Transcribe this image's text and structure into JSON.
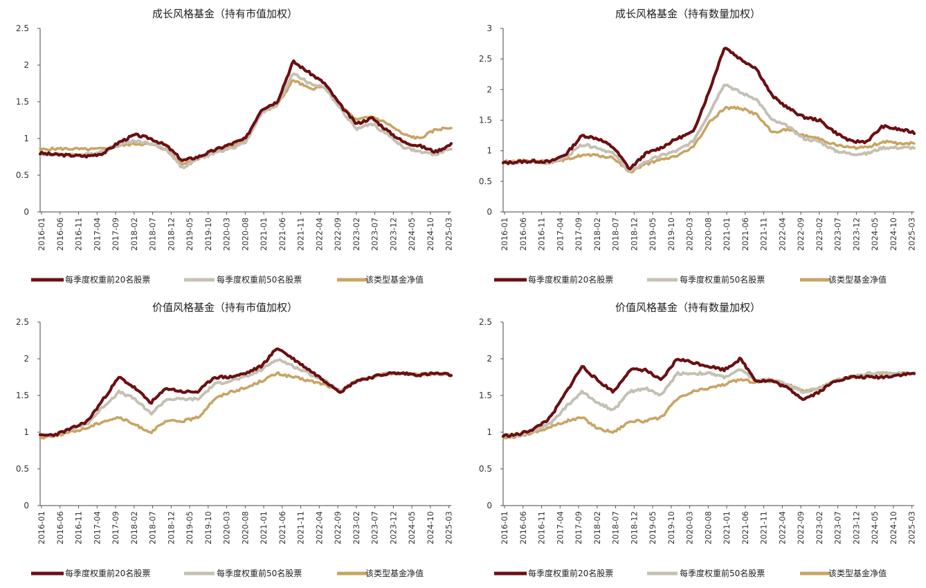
{
  "colors": {
    "top20": "#6b0f12",
    "top50": "#c4c1b3",
    "fund": "#c9a463"
  },
  "x_labels": [
    "2016-01",
    "2016-06",
    "2016-11",
    "2017-04",
    "2017-09",
    "2018-02",
    "2018-07",
    "2018-12",
    "2019-05",
    "2019-10",
    "2020-03",
    "2020-08",
    "2021-01",
    "2021-06",
    "2021-11",
    "2022-04",
    "2022-09",
    "2023-02",
    "2023-07",
    "2023-12",
    "2024-05",
    "2024-10",
    "2025-03"
  ],
  "chart_data": [
    {
      "type": "line",
      "title": "成长风格基金（持有市值加权）",
      "ylim": [
        0,
        2.5
      ],
      "yticks": [
        "0",
        "0.5",
        "1",
        "1.5",
        "2",
        "2.5"
      ],
      "legend_placement": "bottom",
      "series": [
        {
          "name": "每季度权重前20名股票",
          "values": [
            0.8,
            0.78,
            0.77,
            0.76,
            0.8,
            0.95,
            1.05,
            1.0,
            0.9,
            0.7,
            0.75,
            0.84,
            0.92,
            1.0,
            1.4,
            1.5,
            2.05,
            1.9,
            1.75,
            1.45,
            1.2,
            1.28,
            1.1,
            0.95,
            0.9,
            0.82,
            0.92
          ]
        },
        {
          "name": "每季度权重前50名股票",
          "values": [
            0.78,
            0.78,
            0.78,
            0.78,
            0.83,
            0.92,
            0.97,
            0.93,
            0.85,
            0.6,
            0.72,
            0.8,
            0.86,
            0.95,
            1.35,
            1.45,
            1.9,
            1.75,
            1.7,
            1.4,
            1.13,
            1.2,
            1.05,
            0.88,
            0.82,
            0.78,
            0.87
          ]
        },
        {
          "name": "该类型基金净值",
          "values": [
            0.85,
            0.86,
            0.86,
            0.85,
            0.86,
            0.9,
            0.93,
            0.92,
            0.85,
            0.65,
            0.75,
            0.82,
            0.88,
            0.97,
            1.35,
            1.45,
            1.8,
            1.68,
            1.7,
            1.45,
            1.25,
            1.3,
            1.2,
            1.05,
            1.0,
            1.12,
            1.15
          ]
        }
      ]
    },
    {
      "type": "line",
      "title": "成长风格基金（持有数量加权）",
      "ylim": [
        0,
        3
      ],
      "yticks": [
        "0",
        "0.5",
        "1",
        "1.5",
        "2",
        "2.5",
        "3"
      ],
      "legend_placement": "bottom",
      "series": [
        {
          "name": "每季度权重前20名股票",
          "values": [
            0.8,
            0.82,
            0.83,
            0.82,
            0.95,
            1.25,
            1.2,
            1.05,
            0.7,
            0.95,
            1.05,
            1.2,
            1.3,
            1.95,
            2.7,
            2.5,
            2.35,
            1.9,
            1.7,
            1.55,
            1.5,
            1.3,
            1.15,
            1.15,
            1.4,
            1.35,
            1.3
          ]
        },
        {
          "name": "每季度权重前50名股票",
          "values": [
            0.8,
            0.81,
            0.82,
            0.8,
            0.9,
            1.1,
            1.05,
            0.95,
            0.65,
            0.82,
            0.92,
            1.0,
            1.15,
            1.6,
            2.1,
            1.95,
            1.85,
            1.5,
            1.4,
            1.2,
            1.15,
            1.0,
            0.95,
            0.95,
            1.05,
            1.05,
            1.05
          ]
        },
        {
          "name": "该类型基金净值",
          "values": [
            0.82,
            0.83,
            0.84,
            0.82,
            0.86,
            0.93,
            0.92,
            0.88,
            0.65,
            0.78,
            0.85,
            0.92,
            1.05,
            1.45,
            1.7,
            1.7,
            1.6,
            1.3,
            1.35,
            1.25,
            1.2,
            1.1,
            1.05,
            1.05,
            1.15,
            1.12,
            1.12
          ]
        }
      ]
    },
    {
      "type": "line",
      "title": "价值风格基金（持有市值加权）",
      "ylim": [
        0,
        2.5
      ],
      "yticks": [
        "0",
        "0.5",
        "1",
        "1.5",
        "2",
        "2.5"
      ],
      "legend_placement": "bottom",
      "series": [
        {
          "name": "每季度权重前20名股票",
          "values": [
            0.95,
            0.97,
            1.05,
            1.15,
            1.45,
            1.75,
            1.6,
            1.4,
            1.6,
            1.55,
            1.55,
            1.75,
            1.75,
            1.8,
            1.9,
            2.15,
            2.0,
            1.85,
            1.7,
            1.55,
            1.7,
            1.75,
            1.8,
            1.8,
            1.78,
            1.8,
            1.78
          ]
        },
        {
          "name": "每季度权重前50名股票",
          "values": [
            0.95,
            0.97,
            1.04,
            1.12,
            1.35,
            1.55,
            1.45,
            1.25,
            1.45,
            1.45,
            1.45,
            1.65,
            1.7,
            1.75,
            1.85,
            2.0,
            1.9,
            1.8,
            1.7,
            1.55,
            1.7,
            1.75,
            1.8,
            1.8,
            1.78,
            1.8,
            1.78
          ]
        },
        {
          "name": "该类型基金净值",
          "values": [
            0.92,
            0.96,
            1.0,
            1.06,
            1.15,
            1.2,
            1.1,
            1.0,
            1.15,
            1.15,
            1.2,
            1.45,
            1.55,
            1.6,
            1.7,
            1.8,
            1.75,
            1.7,
            1.65,
            1.55,
            1.7,
            1.75,
            1.8,
            1.8,
            1.78,
            1.8,
            1.78
          ]
        }
      ]
    },
    {
      "type": "line",
      "title": "价值风格基金（持有数量加权）",
      "ylim": [
        0,
        2.5
      ],
      "yticks": [
        "0",
        "0.5",
        "1",
        "1.5",
        "2",
        "2.5"
      ],
      "legend_placement": "bottom",
      "series": [
        {
          "name": "每季度权重前20名股票",
          "values": [
            0.95,
            0.97,
            1.05,
            1.2,
            1.55,
            1.9,
            1.7,
            1.55,
            1.85,
            1.85,
            1.7,
            2.0,
            1.95,
            1.9,
            1.85,
            2.0,
            1.7,
            1.7,
            1.6,
            1.45,
            1.55,
            1.7,
            1.75,
            1.75,
            1.75,
            1.78,
            1.8
          ]
        },
        {
          "name": "每季度权重前50名股票",
          "values": [
            0.95,
            0.96,
            1.03,
            1.12,
            1.35,
            1.55,
            1.4,
            1.3,
            1.55,
            1.6,
            1.5,
            1.8,
            1.8,
            1.8,
            1.75,
            1.85,
            1.7,
            1.72,
            1.65,
            1.55,
            1.6,
            1.7,
            1.75,
            1.8,
            1.8,
            1.8,
            1.8
          ]
        },
        {
          "name": "该类型基金净值",
          "values": [
            0.92,
            0.95,
            1.0,
            1.07,
            1.15,
            1.2,
            1.05,
            1.0,
            1.15,
            1.15,
            1.2,
            1.45,
            1.55,
            1.6,
            1.65,
            1.72,
            1.68,
            1.7,
            1.65,
            1.55,
            1.6,
            1.7,
            1.75,
            1.8,
            1.8,
            1.8,
            1.8
          ]
        }
      ]
    }
  ]
}
